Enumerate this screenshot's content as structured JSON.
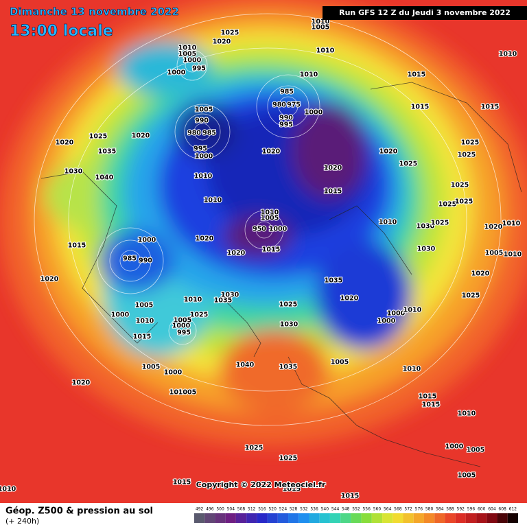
{
  "header": {
    "date": "Dimanche 13 novembre 2022",
    "time": "13:00 locale",
    "run": "Run GFS 12 Z du Jeudi 3 novembre 2022"
  },
  "footer": {
    "copyright": "Copyright © 2022 Meteociel.fr",
    "title": "Géop. Z500 & pression au sol",
    "lead": "(+ 240h)"
  },
  "scale": [
    "492",
    "496",
    "500",
    "504",
    "508",
    "512",
    "516",
    "520",
    "524",
    "528",
    "532",
    "536",
    "540",
    "544",
    "548",
    "552",
    "556",
    "560",
    "564",
    "568",
    "572",
    "576",
    "580",
    "584",
    "588",
    "592",
    "596",
    "600",
    "604",
    "608",
    "612"
  ],
  "isobar_labels": [
    "1010",
    "1005",
    "1025",
    "1020",
    "1010",
    "1010",
    "1010",
    "1005",
    "1000",
    "995",
    "1000",
    "1010",
    "1015",
    "985",
    "980",
    "975",
    "1000",
    "990",
    "995",
    "1005",
    "990",
    "980",
    "985",
    "995",
    "1000",
    "1015",
    "1015",
    "1025",
    "1020",
    "1020",
    "1035",
    "1020",
    "1020",
    "1025",
    "1025",
    "1030",
    "1040",
    "1020",
    "1025",
    "1010",
    "1025",
    "1015",
    "1010",
    "1025",
    "1025",
    "1010",
    "1030",
    "1025",
    "1020",
    "1010",
    "1010",
    "1005",
    "950",
    "1000",
    "1020",
    "1015",
    "1000",
    "985",
    "990",
    "1020",
    "1015",
    "1030",
    "1005",
    "1010",
    "1020",
    "1020",
    "1035",
    "1025",
    "1030",
    "1035",
    "1010",
    "1020",
    "1005",
    "1025",
    "1025",
    "1000",
    "1010",
    "1000",
    "1010",
    "1005",
    "1000",
    "995",
    "1030",
    "1000",
    "1015",
    "1005",
    "1005",
    "1000",
    "1035",
    "1040",
    "1010",
    "1020",
    "1010",
    "1005",
    "1015",
    "1015",
    "1010",
    "1000",
    "1005",
    "1025",
    "1025",
    "1015",
    "1005",
    "1015",
    "1015",
    "1010"
  ]
}
